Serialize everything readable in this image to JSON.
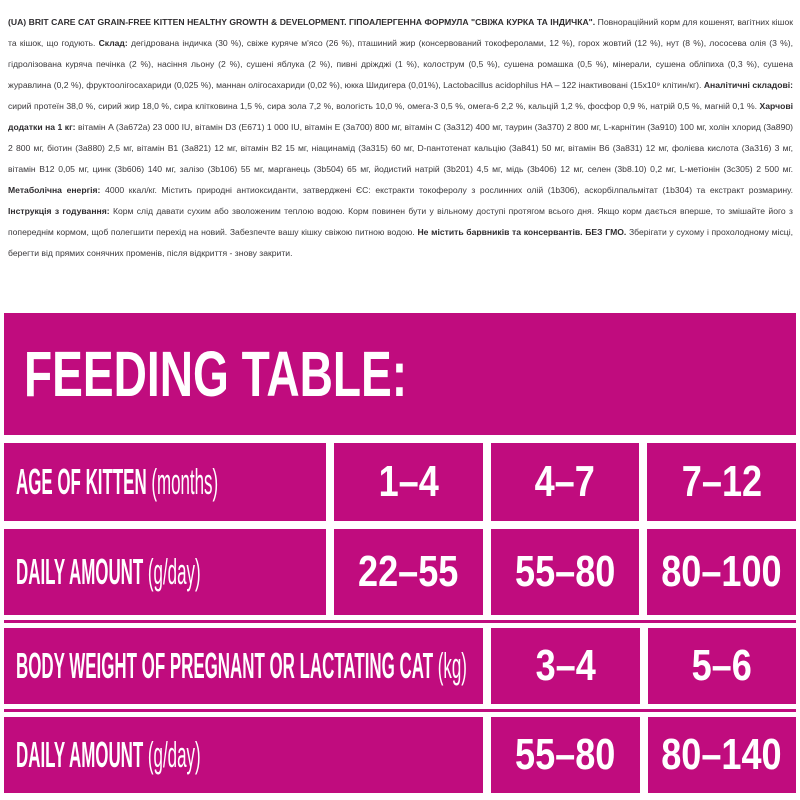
{
  "page": {
    "accent_magenta": "#c00c7e",
    "text_color": "#3a383b",
    "background": "#ffffff"
  },
  "label_text": {
    "segments": [
      {
        "text": "(UA) BRIT CARE CAT GRAIN-FREE KITTEN HEALTHY GROWTH & DEVELOPMENT. ГІПОАЛЕРГЕННА ФОРМУЛА \"СВІЖА КУРКА ТА ІНДИЧКА\". ",
        "bold": true
      },
      {
        "text": "Повнораційний корм для кошенят, вагітних кішок та кішок, що годують. ",
        "bold": false
      },
      {
        "text": "Склад: ",
        "bold": true
      },
      {
        "text": "дегідрована індичка (30 %), свіже куряче м'ясо (26 %), пташиний жир (консервований токоферолами, 12 %), горох жовтий (12 %), нут (8 %), лососева олія (3 %), гідролізована куряча печінка (2 %), насіння льону (2 %), сушені яблука (2 %), пивні дріжджі (1 %), колострум (0,5 %), сушена ромашка (0,5 %), мінерали, сушена обліпиха (0,3 %), сушена журавлина (0,2 %), фруктоолігосахариди (0,025 %), маннан олігосахариди (0,02 %), юкка Шидигера (0,01%), Lactobacillus acidophilus HA – 122 інактивовані (15x10⁹ клітин/кг). ",
        "bold": false
      },
      {
        "text": "Аналітичні складові: ",
        "bold": true
      },
      {
        "text": "сирий протеїн 38,0 %, сирий жир 18,0 %, сира клітковина 1,5 %, сира зола 7,2 %, вологість 10,0 %, омега-3 0,5 %, омега-6 2,2 %, кальцій 1,2 %, фосфор 0,9 %, натрій 0,5 %, магній 0,1 %. ",
        "bold": false
      },
      {
        "text": "Харчові додатки на 1 кг: ",
        "bold": true
      },
      {
        "text": "вітамін A (3a672a) 23 000 IU, вітамін D3 (E671) 1 000 IU, вітамін E (3a700) 800 мг, вітамін C (3a312) 400 мг, таурин (3a370) 2 800 мг, L-карнітин (3a910) 100 мг, холін хлорид (3a890) 2 800 мг, біотин (3a880) 2,5 мг, вітамін B1 (3a821) 12 мг, вітамін B2 15 мг, ніацинамід (3a315) 60 мг, D-пантотенат кальцію (3a841) 50 мг, вітамін B6 (3a831) 12 мг, фолієва кислота (3a316) 3 мг, вітамін B12 0,05 мг, цинк (3b606) 140 мг, залізо (3b106) 55 мг, марганець (3b504) 65 мг, йодистий натрій (3b201) 4,5 мг, мідь (3b406) 12 мг, селен (3b8.10) 0,2 мг, L-метіонін (3c305) 2 500 мг. ",
        "bold": false
      },
      {
        "text": "Метаболічна енергія: ",
        "bold": true
      },
      {
        "text": "4000 ккал/кг. Містить природні антиоксиданти, затверджені ЄС: екстракти токоферолу з рослинних олій (1b306), аскорбілпальмітат (1b304) та екстракт розмарину. ",
        "bold": false
      },
      {
        "text": "Інструкція з годування: ",
        "bold": true
      },
      {
        "text": "Корм слід давати сухим або зволоженим теплою водою. Корм повинен бути у вільному доступі протягом всього дня. Якщо корм дається вперше, то змішайте його з попереднім кормом, щоб полегшити перехід на новий. Забезпечте вашу кішку свіжою питною водою. ",
        "bold": false
      },
      {
        "text": "Не містить барвників та консервантів. БЕЗ ГМО. ",
        "bold": true
      },
      {
        "text": "Зберігати у сухому і прохолодному місці, берегти від прямих сонячних променів, після відкриття - знову закрити.",
        "bold": false
      }
    ]
  },
  "feeding_table": {
    "title": "FEEDING TABLE:",
    "rows": [
      {
        "label": "AGE OF KITTEN",
        "label_note": "(months)",
        "label_span": 1,
        "gap_before": "thin",
        "values": [
          "1–4",
          "4–7",
          "7–12"
        ]
      },
      {
        "label": "DAILY AMOUNT",
        "label_note": "(g/day)",
        "label_span": 1,
        "gap_before": "thin",
        "values": [
          "22–55",
          "55–80",
          "80–100"
        ]
      },
      {
        "label": "BODY WEIGHT OF PREGNANT OR LACTATING CAT",
        "label_note": "(kg)",
        "label_span": 2,
        "gap_before": "thick",
        "values": [
          "3–4",
          "5–6"
        ]
      },
      {
        "label": "DAILY AMOUNT",
        "label_note": "(g/day)",
        "label_span": 2,
        "gap_before": "thick",
        "values": [
          "55–80",
          "80–140"
        ]
      }
    ]
  }
}
